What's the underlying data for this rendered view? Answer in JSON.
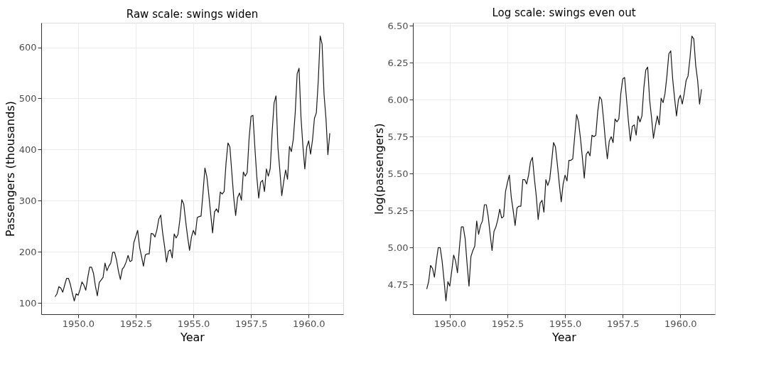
{
  "chart_data": [
    {
      "type": "line",
      "title": "Raw scale: swings widen",
      "xlabel": "Year",
      "ylabel": "Passengers (thousands)",
      "grid": true,
      "marker": "none",
      "line_style": "solid",
      "xlim": [
        1948.4,
        1961.5
      ],
      "xticks": [
        {
          "value": 1950,
          "label": "1950.0"
        },
        {
          "value": 1952.5,
          "label": "1952.5"
        },
        {
          "value": 1955,
          "label": "1955.0"
        },
        {
          "value": 1957.5,
          "label": "1957.5"
        },
        {
          "value": 1960,
          "label": "1960.0"
        }
      ],
      "ylim": [
        78,
        648
      ],
      "yticks": [
        100,
        200,
        300,
        400,
        500,
        600
      ],
      "x": [
        1949.0,
        1949.083,
        1949.167,
        1949.25,
        1949.333,
        1949.417,
        1949.5,
        1949.583,
        1949.667,
        1949.75,
        1949.833,
        1949.917,
        1950.0,
        1950.083,
        1950.167,
        1950.25,
        1950.333,
        1950.417,
        1950.5,
        1950.583,
        1950.667,
        1950.75,
        1950.833,
        1950.917,
        1951.0,
        1951.083,
        1951.167,
        1951.25,
        1951.333,
        1951.417,
        1951.5,
        1951.583,
        1951.667,
        1951.75,
        1951.833,
        1951.917,
        1952.0,
        1952.083,
        1952.167,
        1952.25,
        1952.333,
        1952.417,
        1952.5,
        1952.583,
        1952.667,
        1952.75,
        1952.833,
        1952.917,
        1953.0,
        1953.083,
        1953.167,
        1953.25,
        1953.333,
        1953.417,
        1953.5,
        1953.583,
        1953.667,
        1953.75,
        1953.833,
        1953.917,
        1954.0,
        1954.083,
        1954.167,
        1954.25,
        1954.333,
        1954.417,
        1954.5,
        1954.583,
        1954.667,
        1954.75,
        1954.833,
        1954.917,
        1955.0,
        1955.083,
        1955.167,
        1955.25,
        1955.333,
        1955.417,
        1955.5,
        1955.583,
        1955.667,
        1955.75,
        1955.833,
        1955.917,
        1956.0,
        1956.083,
        1956.167,
        1956.25,
        1956.333,
        1956.417,
        1956.5,
        1956.583,
        1956.667,
        1956.75,
        1956.833,
        1956.917,
        1957.0,
        1957.083,
        1957.167,
        1957.25,
        1957.333,
        1957.417,
        1957.5,
        1957.583,
        1957.667,
        1957.75,
        1957.833,
        1957.917,
        1958.0,
        1958.083,
        1958.167,
        1958.25,
        1958.333,
        1958.417,
        1958.5,
        1958.583,
        1958.667,
        1958.75,
        1958.833,
        1958.917,
        1959.0,
        1959.083,
        1959.167,
        1959.25,
        1959.333,
        1959.417,
        1959.5,
        1959.583,
        1959.667,
        1959.75,
        1959.833,
        1959.917,
        1960.0,
        1960.083,
        1960.167,
        1960.25,
        1960.333,
        1960.417,
        1960.5,
        1960.583,
        1960.667,
        1960.75,
        1960.833,
        1960.917
      ],
      "series": [
        {
          "color": "#1a1a1a",
          "values": [
            112,
            118,
            132,
            129,
            121,
            135,
            148,
            148,
            136,
            119,
            104,
            118,
            115,
            126,
            141,
            135,
            125,
            149,
            170,
            170,
            158,
            133,
            114,
            140,
            145,
            150,
            178,
            163,
            172,
            178,
            199,
            199,
            184,
            162,
            146,
            166,
            171,
            180,
            193,
            181,
            183,
            218,
            230,
            242,
            209,
            191,
            172,
            194,
            196,
            196,
            236,
            235,
            229,
            243,
            264,
            272,
            237,
            211,
            180,
            201,
            204,
            188,
            235,
            227,
            234,
            264,
            302,
            293,
            259,
            229,
            203,
            229,
            242,
            233,
            267,
            269,
            270,
            315,
            364,
            347,
            312,
            274,
            237,
            278,
            284,
            277,
            317,
            313,
            318,
            374,
            413,
            405,
            355,
            306,
            271,
            306,
            315,
            301,
            356,
            348,
            355,
            422,
            465,
            467,
            404,
            347,
            305,
            336,
            340,
            318,
            362,
            348,
            363,
            435,
            491,
            505,
            404,
            359,
            310,
            337,
            360,
            342,
            406,
            396,
            420,
            472,
            548,
            559,
            463,
            407,
            362,
            405,
            417,
            391,
            419,
            461,
            472,
            535,
            622,
            606,
            508,
            461,
            390,
            432
          ]
        }
      ]
    },
    {
      "type": "line",
      "title": "Log scale: swings even out",
      "xlabel": "Year",
      "ylabel": "log(passengers)",
      "grid": true,
      "marker": "none",
      "line_style": "solid",
      "xlim": [
        1948.4,
        1961.5
      ],
      "xticks": [
        {
          "value": 1950,
          "label": "1950.0"
        },
        {
          "value": 1952.5,
          "label": "1952.5"
        },
        {
          "value": 1955,
          "label": "1955.0"
        },
        {
          "value": 1957.5,
          "label": "1957.5"
        },
        {
          "value": 1960,
          "label": "1960.0"
        }
      ],
      "ylim": [
        4.55,
        6.52
      ],
      "yticks": [
        4.75,
        {
          "value": 5,
          "label": "5.00"
        },
        5.25,
        {
          "value": 5.5,
          "label": "5.50"
        },
        5.75,
        {
          "value": 6,
          "label": "6.00"
        },
        6.25,
        {
          "value": 6.5,
          "label": "6.50"
        }
      ],
      "x": [
        1949.0,
        1949.083,
        1949.167,
        1949.25,
        1949.333,
        1949.417,
        1949.5,
        1949.583,
        1949.667,
        1949.75,
        1949.833,
        1949.917,
        1950.0,
        1950.083,
        1950.167,
        1950.25,
        1950.333,
        1950.417,
        1950.5,
        1950.583,
        1950.667,
        1950.75,
        1950.833,
        1950.917,
        1951.0,
        1951.083,
        1951.167,
        1951.25,
        1951.333,
        1951.417,
        1951.5,
        1951.583,
        1951.667,
        1951.75,
        1951.833,
        1951.917,
        1952.0,
        1952.083,
        1952.167,
        1952.25,
        1952.333,
        1952.417,
        1952.5,
        1952.583,
        1952.667,
        1952.75,
        1952.833,
        1952.917,
        1953.0,
        1953.083,
        1953.167,
        1953.25,
        1953.333,
        1953.417,
        1953.5,
        1953.583,
        1953.667,
        1953.75,
        1953.833,
        1953.917,
        1954.0,
        1954.083,
        1954.167,
        1954.25,
        1954.333,
        1954.417,
        1954.5,
        1954.583,
        1954.667,
        1954.75,
        1954.833,
        1954.917,
        1955.0,
        1955.083,
        1955.167,
        1955.25,
        1955.333,
        1955.417,
        1955.5,
        1955.583,
        1955.667,
        1955.75,
        1955.833,
        1955.917,
        1956.0,
        1956.083,
        1956.167,
        1956.25,
        1956.333,
        1956.417,
        1956.5,
        1956.583,
        1956.667,
        1956.75,
        1956.833,
        1956.917,
        1957.0,
        1957.083,
        1957.167,
        1957.25,
        1957.333,
        1957.417,
        1957.5,
        1957.583,
        1957.667,
        1957.75,
        1957.833,
        1957.917,
        1958.0,
        1958.083,
        1958.167,
        1958.25,
        1958.333,
        1958.417,
        1958.5,
        1958.583,
        1958.667,
        1958.75,
        1958.833,
        1958.917,
        1959.0,
        1959.083,
        1959.167,
        1959.25,
        1959.333,
        1959.417,
        1959.5,
        1959.583,
        1959.667,
        1959.75,
        1959.833,
        1959.917,
        1960.0,
        1960.083,
        1960.167,
        1960.25,
        1960.333,
        1960.417,
        1960.5,
        1960.583,
        1960.667,
        1960.75,
        1960.833,
        1960.917
      ],
      "series": [
        {
          "color": "#1a1a1a",
          "values": [
            4.72,
            4.77,
            4.88,
            4.86,
            4.8,
            4.91,
            5.0,
            5.0,
            4.91,
            4.78,
            4.64,
            4.77,
            4.74,
            4.84,
            4.95,
            4.91,
            4.83,
            5.0,
            5.14,
            5.14,
            5.06,
            4.89,
            4.74,
            4.94,
            4.98,
            5.01,
            5.18,
            5.09,
            5.15,
            5.18,
            5.29,
            5.29,
            5.21,
            5.09,
            4.98,
            5.11,
            5.14,
            5.19,
            5.26,
            5.2,
            5.21,
            5.38,
            5.44,
            5.49,
            5.34,
            5.25,
            5.15,
            5.27,
            5.28,
            5.28,
            5.46,
            5.46,
            5.43,
            5.49,
            5.58,
            5.61,
            5.47,
            5.35,
            5.19,
            5.3,
            5.32,
            5.24,
            5.46,
            5.42,
            5.46,
            5.58,
            5.71,
            5.68,
            5.56,
            5.43,
            5.31,
            5.43,
            5.49,
            5.45,
            5.59,
            5.59,
            5.6,
            5.75,
            5.9,
            5.85,
            5.74,
            5.61,
            5.47,
            5.63,
            5.65,
            5.62,
            5.76,
            5.75,
            5.76,
            5.92,
            6.02,
            6.0,
            5.87,
            5.72,
            5.6,
            5.72,
            5.75,
            5.71,
            5.87,
            5.85,
            5.87,
            6.04,
            6.14,
            6.15,
            6.0,
            5.85,
            5.72,
            5.82,
            5.83,
            5.76,
            5.89,
            5.85,
            5.89,
            6.08,
            6.2,
            6.22,
            6.0,
            5.88,
            5.74,
            5.82,
            5.89,
            5.83,
            6.01,
            5.98,
            6.04,
            6.16,
            6.31,
            6.33,
            6.14,
            6.01,
            5.89,
            6.0,
            6.03,
            5.97,
            6.04,
            6.13,
            6.16,
            6.28,
            6.43,
            6.41,
            6.23,
            6.13,
            5.97,
            6.07
          ]
        }
      ]
    }
  ]
}
